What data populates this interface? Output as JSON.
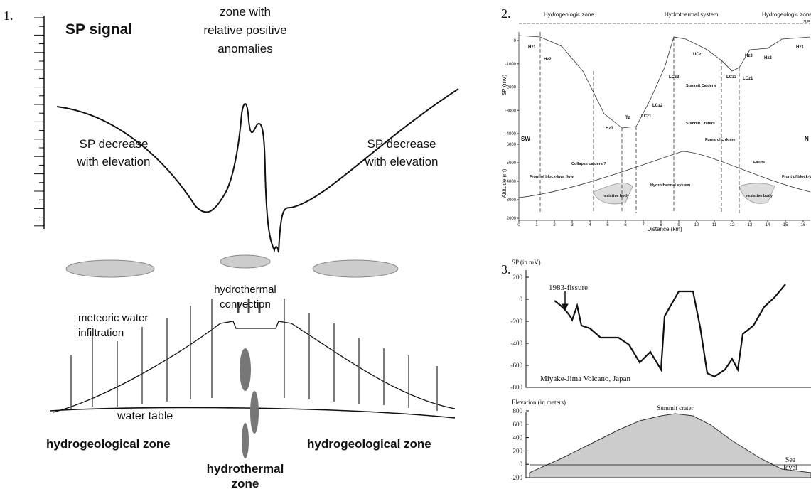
{
  "panel1": {
    "number": "1.",
    "title": "SP signal",
    "zone_label": [
      "zone with",
      "relative positive",
      "anomalies"
    ],
    "left_label": [
      "SP decrease",
      "with elevation"
    ],
    "right_label": [
      "SP decrease",
      "with elevation"
    ],
    "convection_label": [
      "hydrothermal",
      "convection"
    ],
    "infiltration_label": [
      "meteoric water",
      "infiltration"
    ],
    "water_table": "water table",
    "left_zone": "hydrogeological zone",
    "right_zone": "hydrogeological zone",
    "center_zone": [
      "hydrothermal",
      "zone"
    ]
  },
  "panel2": {
    "number": "2.",
    "zones": [
      "Hydrogeologic zone",
      "Hydrothermal system",
      "Hydrogeologic zone"
    ],
    "corner": "SP",
    "sp_axis_label": "SP (mV)",
    "sp_ticks": [
      0,
      -1000,
      -2000,
      -3000,
      -4000
    ],
    "alt_axis_label": "Altitude (m)",
    "alt_ticks": [
      6000,
      5000,
      4000,
      3000,
      2000
    ],
    "x_ticks": [
      0,
      1,
      2,
      3,
      4,
      5,
      6,
      7,
      8,
      9,
      10,
      11,
      12,
      13,
      14,
      15,
      16
    ],
    "x_axis_label": "Distance (km)",
    "sw": "SW",
    "n": "N",
    "zone_codes": [
      "Hz1",
      "Hz2",
      "Hz3",
      "Tz",
      "LCz1",
      "LCz2",
      "LCz3",
      "UCz",
      "LCz3",
      "LCz1",
      "Hz3",
      "Hz2",
      "Hz1"
    ],
    "annotations": [
      "Summit Caldera",
      "Summit Craters",
      "Fumarolic dome",
      "Collapse caldera ?",
      "Front of block-lava flow",
      "resistive body",
      "Faults",
      "Front of block-lava flow",
      "resistive body",
      "Hydrothermal system"
    ]
  },
  "panel3": {
    "number": "3.",
    "sp_axis_label": "SP (in mV)",
    "sp_ticks": [
      200,
      0,
      -200,
      -400,
      -600,
      -800
    ],
    "fissure": "1983-fissure",
    "volcano": "Miyake-Jima Volcano, Japan",
    "elev_axis_label": "Elevation (in meters)",
    "elev_ticks": [
      800,
      600,
      400,
      200,
      0,
      -200
    ],
    "summit": "Summit crater",
    "sea_level": [
      "Sea",
      "level"
    ]
  }
}
